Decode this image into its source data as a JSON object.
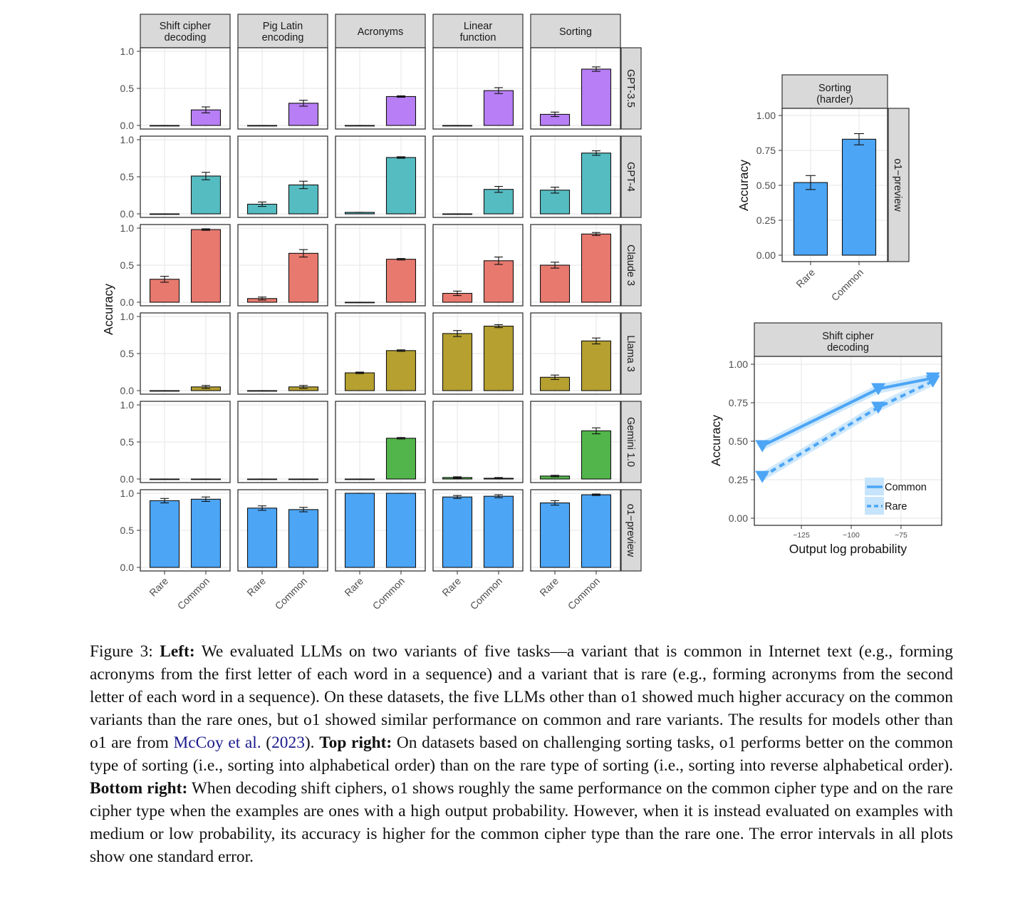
{
  "chart_data": [
    {
      "type": "bar",
      "facets": "grid",
      "ylabel": "Accuracy",
      "ylim": [
        0,
        1
      ],
      "yticks": [
        "0.0",
        "0.5",
        "1.0"
      ],
      "categories": [
        "Rare",
        "Common"
      ],
      "columns": [
        "Shift cipher\ndecoding",
        "Pig Latin\nencoding",
        "Acronyms",
        "Linear\nfunction",
        "Sorting"
      ],
      "rows": [
        {
          "name": "GPT-3.5",
          "color": "#b77ef5",
          "values": [
            [
              0.0,
              0.21
            ],
            [
              0.0,
              0.3
            ],
            [
              0.0,
              0.39
            ],
            [
              0.0,
              0.47
            ],
            [
              0.15,
              0.76
            ]
          ],
          "errors": [
            [
              0.0,
              0.04
            ],
            [
              0.0,
              0.04
            ],
            [
              0.0,
              0.01
            ],
            [
              0.0,
              0.04
            ],
            [
              0.03,
              0.03
            ]
          ]
        },
        {
          "name": "GPT-4",
          "color": "#55bcc2",
          "values": [
            [
              0.0,
              0.51
            ],
            [
              0.13,
              0.39
            ],
            [
              0.02,
              0.76
            ],
            [
              0.0,
              0.33
            ],
            [
              0.32,
              0.82
            ]
          ],
          "errors": [
            [
              0.0,
              0.05
            ],
            [
              0.03,
              0.05
            ],
            [
              0.0,
              0.01
            ],
            [
              0.0,
              0.04
            ],
            [
              0.04,
              0.03
            ]
          ]
        },
        {
          "name": "Claude 3",
          "color": "#e8796e",
          "values": [
            [
              0.31,
              0.98
            ],
            [
              0.05,
              0.66
            ],
            [
              0.0,
              0.58
            ],
            [
              0.12,
              0.56
            ],
            [
              0.5,
              0.92
            ]
          ],
          "errors": [
            [
              0.04,
              0.01
            ],
            [
              0.02,
              0.05
            ],
            [
              0.0,
              0.01
            ],
            [
              0.03,
              0.05
            ],
            [
              0.04,
              0.02
            ]
          ]
        },
        {
          "name": "Llama 3",
          "color": "#b5a030",
          "values": [
            [
              0.0,
              0.05
            ],
            [
              0.0,
              0.05
            ],
            [
              0.24,
              0.54
            ],
            [
              0.77,
              0.87
            ],
            [
              0.18,
              0.67
            ]
          ],
          "errors": [
            [
              0.0,
              0.02
            ],
            [
              0.0,
              0.02
            ],
            [
              0.01,
              0.01
            ],
            [
              0.04,
              0.02
            ],
            [
              0.03,
              0.04
            ]
          ]
        },
        {
          "name": "Gemini 1.0",
          "color": "#52b54b",
          "values": [
            [
              0.0,
              0.0
            ],
            [
              0.0,
              0.0
            ],
            [
              0.0,
              0.55
            ],
            [
              0.02,
              0.01
            ],
            [
              0.04,
              0.65
            ]
          ],
          "errors": [
            [
              0.0,
              0.0
            ],
            [
              0.0,
              0.0
            ],
            [
              0.0,
              0.01
            ],
            [
              0.01,
              0.01
            ],
            [
              0.01,
              0.04
            ]
          ]
        },
        {
          "name": "o1−preview",
          "color": "#4ca5f5",
          "values": [
            [
              0.9,
              0.92
            ],
            [
              0.8,
              0.78
            ],
            [
              1.0,
              1.0
            ],
            [
              0.95,
              0.96
            ],
            [
              0.87,
              0.98
            ]
          ],
          "errors": [
            [
              0.03,
              0.03
            ],
            [
              0.03,
              0.03
            ],
            [
              0.0,
              0.0
            ],
            [
              0.02,
              0.02
            ],
            [
              0.03,
              0.01
            ]
          ]
        }
      ]
    },
    {
      "type": "bar",
      "facet_title": "Sorting\n(harder)",
      "row_strip": "o1−preview",
      "ylabel": "Accuracy",
      "ylim": [
        0,
        1
      ],
      "yticks": [
        "0.00",
        "0.25",
        "0.50",
        "0.75",
        "1.00"
      ],
      "categories": [
        "Rare",
        "Common"
      ],
      "values": [
        0.52,
        0.83
      ],
      "errors": [
        0.05,
        0.04
      ],
      "color": "#4ca5f5"
    },
    {
      "type": "line",
      "facet_title": "Shift cipher\ndecoding",
      "xlabel": "Output log probability",
      "ylabel": "Accuracy",
      "xlim": [
        -148.6,
        -54.6
      ],
      "ylim": [
        0,
        1
      ],
      "xticks": [
        -125,
        -100,
        -75
      ],
      "xtick_labels": [
        "−125",
        "−100",
        "−75"
      ],
      "yticks": [
        "0.00",
        "0.25",
        "0.50",
        "0.75",
        "1.00"
      ],
      "legend": "bottom-right",
      "color": "#4ca5f5",
      "band_color": "#c6e4fb",
      "series": [
        {
          "name": "Common",
          "dash": "solid",
          "x": [
            -144.6,
            -86.4,
            -59.0
          ],
          "y": [
            0.47,
            0.84,
            0.91
          ],
          "se": 0.03
        },
        {
          "name": "Rare",
          "dash": "dashed",
          "x": [
            -144.6,
            -86.4,
            -59.0
          ],
          "y": [
            0.27,
            0.72,
            0.89
          ],
          "se": 0.03
        }
      ]
    }
  ],
  "caption": {
    "label": "Figure 3: ",
    "left_head": "Left:",
    "p1": " We evaluated LLMs on two variants of five tasks—a variant that is common in Internet text (e.g., forming acronyms from the first letter of each word in a sequence) and a variant that is rare (e.g., forming acronyms from the second letter of each word in a sequence). On these datasets, the five LLMs other than o1 showed much higher accuracy on the common variants than the rare ones, but o1 showed similar performance on common and rare variants. The results for models other than o1 are from ",
    "cite_authors": "McCoy et al.",
    "cite_open": " (",
    "cite_year": "2023",
    "cite_close": "). ",
    "top_right_head": "Top right:",
    "p2": " On datasets based on challenging sorting tasks, o1 performs better on the common type of sorting (i.e., sorting into alphabetical order) than on the rare type of sorting (i.e., sorting into reverse alphabetical order). ",
    "bottom_right_head": "Bottom right:",
    "p3": " When decoding shift ciphers, o1 shows roughly the same performance on the common cipher type and on the rare cipher type when the examples are ones with a high output probability. However, when it is instead evaluated on examples with medium or low probability, its accuracy is higher for the common cipher type than the rare one. The error intervals in all plots show one standard error."
  }
}
